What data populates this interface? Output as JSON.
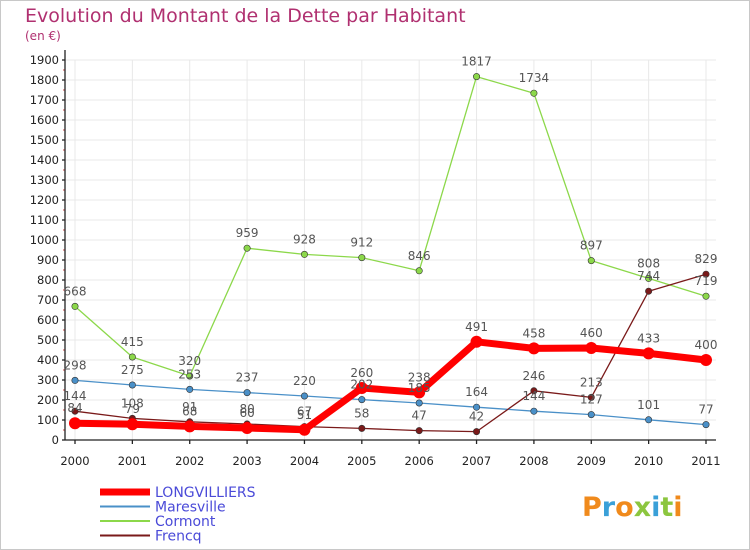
{
  "chart_data": {
    "type": "line",
    "title": "Evolution du Montant de la Dette par Habitant",
    "subtitle": "(en €)",
    "x": [
      "2000",
      "2001",
      "2002",
      "2003",
      "2004",
      "2005",
      "2006",
      "2007",
      "2008",
      "2009",
      "2010",
      "2011"
    ],
    "ylim": [
      0,
      1900
    ],
    "yticks": [
      0,
      100,
      200,
      300,
      400,
      500,
      600,
      700,
      800,
      900,
      1000,
      1100,
      1200,
      1300,
      1400,
      1500,
      1600,
      1700,
      1800,
      1900
    ],
    "grid": true,
    "legend_position": "bottom-left",
    "series": [
      {
        "name": "LONGVILLIERS",
        "color": "#ff0000",
        "values": [
          84,
          79,
          68,
          60,
          51,
          260,
          238,
          491,
          458,
          460,
          433,
          400
        ]
      },
      {
        "name": "Maresville",
        "color": "#4a90c8",
        "values": [
          298,
          275,
          253,
          237,
          220,
          202,
          185,
          164,
          144,
          127,
          101,
          77
        ]
      },
      {
        "name": "Cormont",
        "color": "#8cd84a",
        "values": [
          668,
          415,
          320,
          959,
          928,
          912,
          846,
          1817,
          1734,
          897,
          808,
          719
        ]
      },
      {
        "name": "Frencq",
        "color": "#7a1a1a",
        "values": [
          144,
          108,
          91,
          80,
          67,
          58,
          47,
          42,
          246,
          213,
          744,
          829
        ]
      }
    ]
  },
  "watermark": "Proxiti"
}
